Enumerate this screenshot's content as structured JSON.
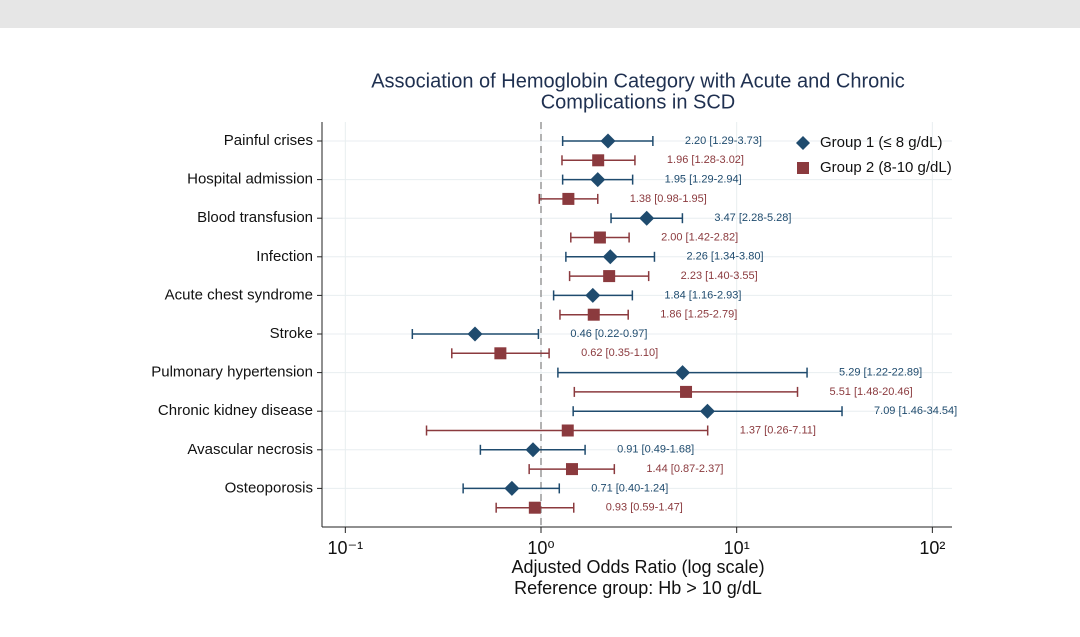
{
  "chart_data": {
    "type": "forest",
    "title": [
      "Association of Hemoglobin Category with Acute and Chronic",
      "Complications in SCD"
    ],
    "xlabel": "Adjusted Odds Ratio (log scale)",
    "subtitle": "Reference group: Hb > 10 g/dL",
    "xscale": "log",
    "xlim": [
      0.076,
      126
    ],
    "xticks": [
      {
        "value": 0.1,
        "label": "10⁻¹"
      },
      {
        "value": 1,
        "label": "10⁰"
      },
      {
        "value": 10,
        "label": "10¹"
      },
      {
        "value": 100,
        "label": "10²"
      }
    ],
    "ref_line": 1,
    "grid": true,
    "legend": "top-right",
    "categories": [
      "Painful crises",
      "Hospital admission",
      "Blood transfusion",
      "Infection",
      "Acute chest syndrome",
      "Stroke",
      "Pulmonary hypertension",
      "Chronic kidney disease",
      "Avascular necrosis",
      "Osteoporosis"
    ],
    "series": [
      {
        "name": "Group 1 (≤ 8 g/dL)",
        "color": "#1f4b6e",
        "marker": "diamond",
        "values": [
          2.2,
          1.95,
          3.47,
          2.26,
          1.84,
          0.46,
          5.29,
          7.09,
          0.91,
          0.71
        ],
        "lower": [
          1.29,
          1.29,
          2.28,
          1.34,
          1.16,
          0.22,
          1.22,
          1.46,
          0.49,
          0.4
        ],
        "upper": [
          3.73,
          2.94,
          5.28,
          3.8,
          2.93,
          0.97,
          22.89,
          34.54,
          1.68,
          1.24
        ],
        "value_labels": [
          "2.20 [1.29-3.73]",
          "1.95 [1.29-2.94]",
          "3.47 [2.28-5.28]",
          "2.26 [1.34-3.80]",
          "1.84 [1.16-2.93]",
          "0.46 [0.22-0.97]",
          "5.29 [1.22-22.89]",
          "7.09 [1.46-34.54]",
          "0.91 [0.49-1.68]",
          "0.71 [0.40-1.24]"
        ]
      },
      {
        "name": "Group 2 (8-10 g/dL)",
        "color": "#8b3a3e",
        "marker": "square",
        "values": [
          1.96,
          1.38,
          2.0,
          2.23,
          1.86,
          0.62,
          5.51,
          1.37,
          1.44,
          0.93
        ],
        "lower": [
          1.28,
          0.98,
          1.42,
          1.4,
          1.25,
          0.35,
          1.48,
          0.26,
          0.87,
          0.59
        ],
        "upper": [
          3.02,
          1.95,
          2.82,
          3.55,
          2.79,
          1.1,
          20.46,
          7.11,
          2.37,
          1.47
        ],
        "value_labels": [
          "1.96 [1.28-3.02]",
          "1.38 [0.98-1.95]",
          "2.00 [1.42-2.82]",
          "2.23 [1.40-3.55]",
          "1.86 [1.25-2.79]",
          "0.62 [0.35-1.10]",
          "5.51 [1.48-20.46]",
          "1.37 [0.26-7.11]",
          "1.44 [0.87-2.37]",
          "0.93 [0.59-1.47]"
        ]
      }
    ]
  }
}
